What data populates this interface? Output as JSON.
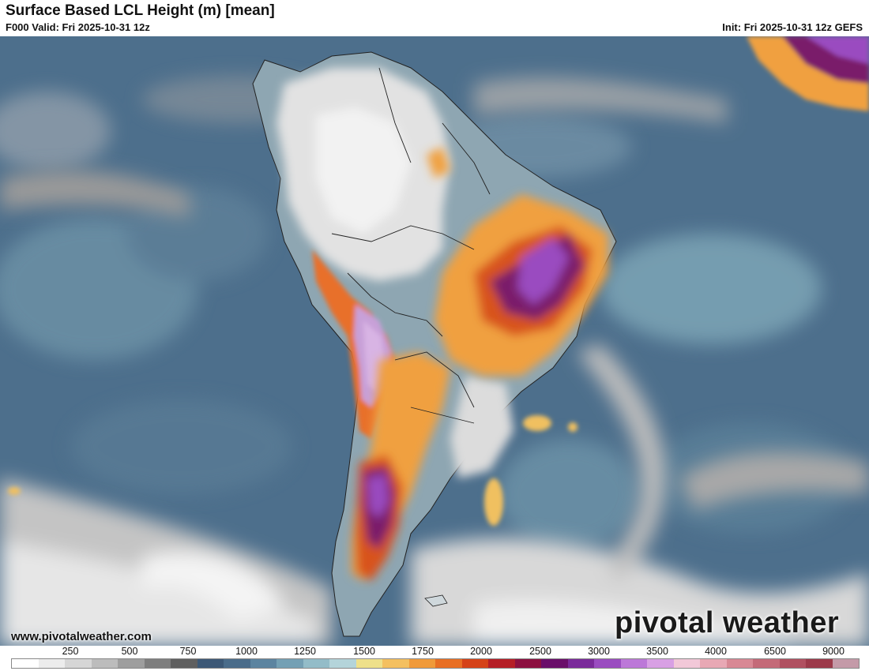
{
  "header": {
    "title": "Surface Based LCL Height (m) [mean]",
    "valid": "F000 Valid: Fri 2025-10-31 12z",
    "init": "Init: Fri 2025-10-31 12z GEFS"
  },
  "footer": {
    "website": "www.pivotalweather.com",
    "brand": "pivotal weather"
  },
  "map": {
    "region": "South America",
    "variable": "Surface Based LCL Height",
    "units": "m"
  },
  "legend": {
    "ticks": [
      "250",
      "500",
      "750",
      "1000",
      "1250",
      "1500",
      "1750",
      "2000",
      "2500",
      "3000",
      "3500",
      "4000",
      "6500",
      "9000"
    ],
    "colors": [
      "#ffffff",
      "#ececec",
      "#d6d6d6",
      "#bcbcbc",
      "#9e9e9e",
      "#7e7e7e",
      "#5f5f5f",
      "#3c5876",
      "#4a6c8a",
      "#5c84a0",
      "#74a0b4",
      "#93bcc8",
      "#b4d4da",
      "#eee08a",
      "#f4c060",
      "#f09a3a",
      "#e86f24",
      "#d54218",
      "#b51e26",
      "#8c1040",
      "#6a0e6a",
      "#7a2a9a",
      "#9a4cc0",
      "#bc78d8",
      "#d8a0e4",
      "#f2c8d8",
      "#e8a8b4",
      "#d88894",
      "#c46a78",
      "#b05060",
      "#9c3a4a",
      "#c49aa8"
    ]
  }
}
